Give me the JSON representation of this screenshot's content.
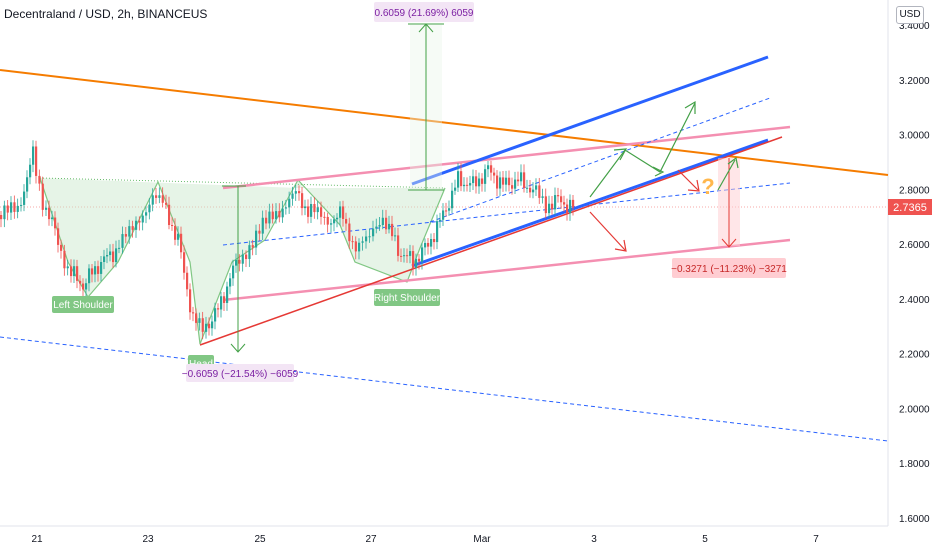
{
  "header": {
    "title": "Decentraland / USD, 2h, BINANCEUS",
    "currency": "USD"
  },
  "chart_data": {
    "type": "candlestick",
    "x_ticks": [
      "21",
      "23",
      "25",
      "27",
      "Mar",
      "3",
      "5",
      "7"
    ],
    "y_ticks": [
      "3.4000",
      "3.2000",
      "3.0000",
      "2.8000",
      "2.6000",
      "2.4000",
      "2.2000",
      "2.0000",
      "1.8000",
      "1.6000"
    ],
    "ylim": [
      1.6,
      3.4
    ],
    "last_price": "2.7365",
    "annotations": {
      "left_shoulder": "Left Shoulder",
      "head": "Head",
      "right_shoulder": "Right Shoulder",
      "measure_up": "0.6059 (21.69%) 6059",
      "measure_down_head": "−0.6059 (−21.54%) −6059",
      "measure_down_target": "−0.3271 (−11.23%) −3271",
      "question": "?"
    },
    "colors": {
      "up": "#26a69a",
      "down": "#ef5350",
      "trend_orange": "#f57c00",
      "channel_blue": "#2962ff",
      "pink": "#f48fb1",
      "red_line": "#e53935",
      "green_arrow": "#43a047"
    }
  }
}
